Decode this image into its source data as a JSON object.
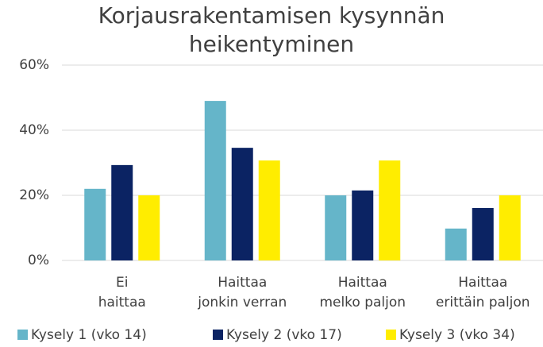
{
  "chart_data": {
    "type": "bar",
    "title": "Korjausrakentamisen kysynnän heikentyminen",
    "categories": [
      [
        "Ei",
        "haittaa"
      ],
      [
        "Haittaa",
        "jonkin verran"
      ],
      [
        "Haittaa",
        "melko paljon"
      ],
      [
        "Haittaa",
        "erittäin paljon"
      ]
    ],
    "series": [
      {
        "name": "Kysely 1 (vko 14)",
        "color": "#65b5c9",
        "values": [
          22,
          49,
          20,
          9.8
        ]
      },
      {
        "name": "Kysely 2 (vko 17)",
        "color": "#0b2363",
        "values": [
          29.3,
          34.6,
          21.5,
          16.1
        ]
      },
      {
        "name": "Kysely 3 (vko 34)",
        "color": "#ffed00",
        "values": [
          20,
          30.7,
          30.7,
          20
        ]
      }
    ],
    "ylim": [
      0,
      60
    ],
    "yticks": [
      {
        "value": 0,
        "label": "0%"
      },
      {
        "value": 20,
        "label": "20%"
      },
      {
        "value": 40,
        "label": "40%"
      },
      {
        "value": 60,
        "label": "60%"
      }
    ],
    "grid": true,
    "legend": "bottom"
  }
}
